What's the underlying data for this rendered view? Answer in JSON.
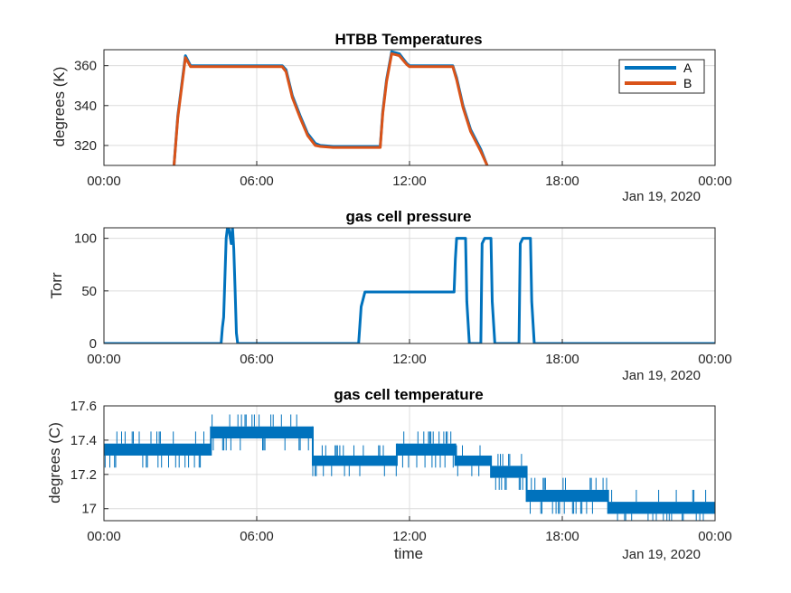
{
  "chart_data": [
    {
      "type": "line",
      "title": "HTBB Temperatures",
      "xlabel": "",
      "ylabel": "degrees (K)",
      "x_tick_labels": [
        "00:00",
        "06:00",
        "12:00",
        "18:00",
        "00:00"
      ],
      "date_label": "Jan 19, 2020",
      "xlim": [
        0,
        24
      ],
      "ylim": [
        310,
        368
      ],
      "y_ticks": [
        320,
        340,
        360
      ],
      "grid": true,
      "legend": "top-right",
      "series": [
        {
          "name": "A",
          "color": "#0072BD",
          "x": [
            2.75,
            2.9,
            3.05,
            3.2,
            3.4,
            5.0,
            7.0,
            7.15,
            7.4,
            7.7,
            8.0,
            8.3,
            8.5,
            9.0,
            10.0,
            10.85,
            10.95,
            11.1,
            11.3,
            11.6,
            11.9,
            12.0,
            13.0,
            13.7,
            13.85,
            14.1,
            14.4,
            14.8,
            15.05
          ],
          "y": [
            310,
            335,
            350,
            365,
            360,
            360,
            360,
            358,
            345,
            335,
            326,
            321,
            320,
            319.5,
            319.5,
            319.5,
            337,
            353,
            367,
            366,
            361,
            360,
            360,
            360,
            354,
            340,
            328,
            318,
            310
          ]
        },
        {
          "name": "B",
          "color": "#D95319",
          "x": [
            2.75,
            2.9,
            3.05,
            3.2,
            3.4,
            5.0,
            7.0,
            7.15,
            7.4,
            7.7,
            8.0,
            8.3,
            8.5,
            9.0,
            10.0,
            10.85,
            10.95,
            11.1,
            11.3,
            11.6,
            11.9,
            12.0,
            13.0,
            13.7,
            13.85,
            14.1,
            14.4,
            14.8,
            15.05
          ],
          "y": [
            310,
            334,
            349,
            364,
            359.5,
            359.5,
            359.5,
            357,
            344,
            334,
            325,
            320,
            319.5,
            319,
            319,
            319,
            336,
            352,
            366,
            365,
            360.5,
            359.5,
            359.5,
            359.5,
            353,
            339,
            327,
            317,
            310
          ]
        }
      ]
    },
    {
      "type": "line",
      "title": "gas cell pressure",
      "xlabel": "",
      "ylabel": "Torr",
      "x_tick_labels": [
        "00:00",
        "06:00",
        "12:00",
        "18:00",
        "00:00"
      ],
      "date_label": "Jan 19, 2020",
      "xlim": [
        0,
        24
      ],
      "ylim": [
        0,
        110
      ],
      "y_ticks": [
        0,
        50,
        100
      ],
      "grid": true,
      "series": [
        {
          "color": "#0072BD",
          "x": [
            0,
            4.6,
            4.65,
            4.7,
            4.8,
            4.85,
            4.9,
            5.0,
            5.05,
            5.1,
            5.15,
            5.2,
            5.25,
            5.3,
            10.0,
            10.1,
            10.25,
            13.0,
            13.75,
            13.8,
            13.85,
            13.95,
            14.2,
            14.25,
            14.35,
            14.8,
            14.85,
            14.95,
            15.2,
            15.25,
            15.35,
            16.3,
            16.35,
            16.45,
            16.75,
            16.8,
            16.9,
            24
          ],
          "y": [
            0,
            0,
            15,
            25,
            100,
            110,
            110,
            95,
            110,
            90,
            50,
            10,
            0,
            0,
            0,
            35,
            49,
            49,
            49,
            80,
            100,
            100,
            100,
            40,
            0,
            0,
            95,
            100,
            100,
            40,
            0,
            0,
            95,
            100,
            100,
            40,
            0,
            0
          ]
        }
      ]
    },
    {
      "type": "line",
      "title": "gas cell temperature",
      "xlabel": "time",
      "ylabel": "degrees (C)",
      "x_tick_labels": [
        "00:00",
        "06:00",
        "12:00",
        "18:00",
        "00:00"
      ],
      "date_label": "Jan 19, 2020",
      "xlim": [
        0,
        24
      ],
      "ylim": [
        16.93,
        17.6
      ],
      "y_ticks": [
        17,
        17.2,
        17.4,
        17.6
      ],
      "grid": true,
      "series": [
        {
          "color": "#0072BD",
          "note_levels": "quantized levels with noise between adjacent steps",
          "segments": [
            {
              "x_start": 0.0,
              "x_end": 4.2,
              "low": 17.31,
              "high": 17.38
            },
            {
              "x_start": 4.2,
              "x_end": 8.2,
              "low": 17.41,
              "high": 17.48
            },
            {
              "x_start": 8.2,
              "x_end": 11.5,
              "low": 17.25,
              "high": 17.31
            },
            {
              "x_start": 11.5,
              "x_end": 13.8,
              "low": 17.31,
              "high": 17.38
            },
            {
              "x_start": 13.8,
              "x_end": 15.2,
              "low": 17.25,
              "high": 17.31
            },
            {
              "x_start": 15.2,
              "x_end": 16.6,
              "low": 17.18,
              "high": 17.25
            },
            {
              "x_start": 16.6,
              "x_end": 19.8,
              "low": 17.04,
              "high": 17.11
            },
            {
              "x_start": 19.8,
              "x_end": 24.0,
              "low": 16.97,
              "high": 17.04
            }
          ]
        }
      ]
    }
  ]
}
